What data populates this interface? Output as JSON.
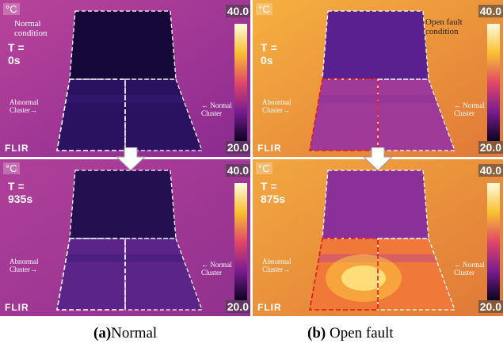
{
  "panels": [
    {
      "unit": "°C",
      "scale_max": "40.0",
      "scale_min": "20.0",
      "logo": "FLIR",
      "condition": "Normal condition",
      "time": "T = 0s",
      "abnormal_label": "Abnormal Cluster→",
      "normal_label": "← Normal Cluster"
    },
    {
      "unit": "°C",
      "scale_max": "40.0",
      "scale_min": "20.0",
      "logo": "FLIR",
      "condition": "Open fault condition",
      "time": "T = 0s",
      "abnormal_label": "Abnormal Cluster→",
      "normal_label": "← Normal Cluster"
    },
    {
      "unit": "°C",
      "scale_max": "40.0",
      "scale_min": "20.0",
      "logo": "FLIR",
      "time": "T = 935s",
      "abnormal_label": "Abnormal Cluster→",
      "normal_label": "← Normal Cluster"
    },
    {
      "unit": "°C",
      "scale_max": "40.0",
      "scale_min": "20.0",
      "logo": "FLIR",
      "time": "T = 875s",
      "abnormal_label": "Abnormal Cluster→",
      "normal_label": "← Normal Cluster"
    }
  ],
  "captions": [
    {
      "label": "(a)",
      "text": "Normal"
    },
    {
      "label": "(b)",
      "text": "Open fault"
    }
  ]
}
